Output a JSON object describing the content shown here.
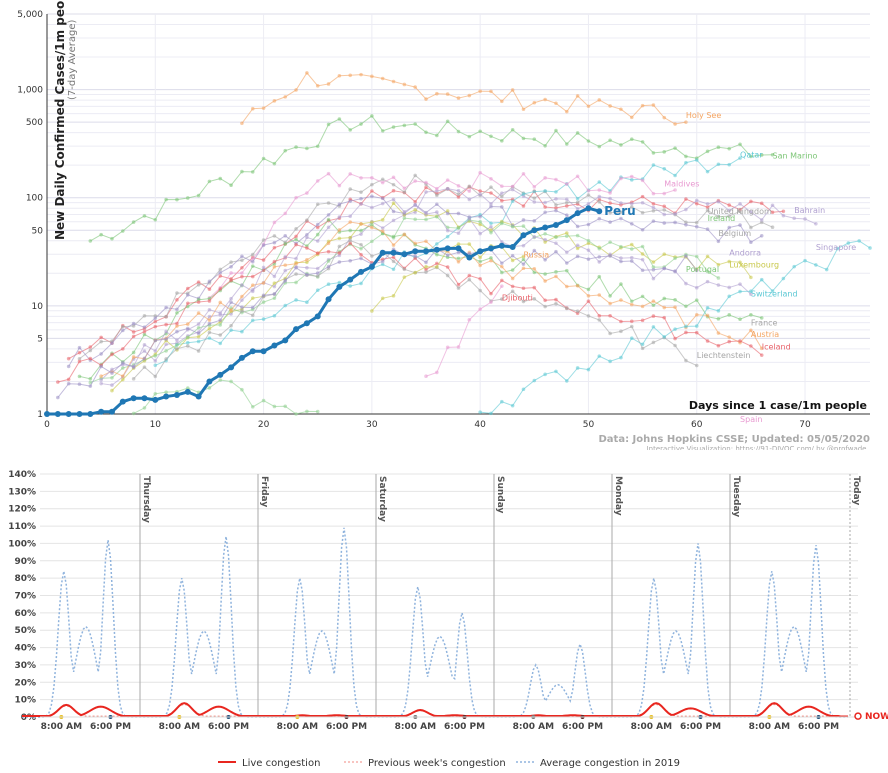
{
  "chart_data": [
    {
      "type": "line",
      "title": "",
      "ylabel": "New Daily Confirmed Cases/1m people",
      "ylabel_sub": "(7-day Average)",
      "xlabel": "Days since 1 case/1m people",
      "yscale": "log",
      "ylim": [
        1,
        5000
      ],
      "xlim": [
        0,
        76
      ],
      "ytick_values": [
        1,
        5,
        10,
        50,
        100,
        500,
        1000,
        5000
      ],
      "ytick_labels": [
        "1",
        "5",
        "10",
        "50",
        "100",
        "500",
        "1,000",
        "5,000"
      ],
      "xticks": [
        0,
        10,
        20,
        30,
        40,
        50,
        60,
        70
      ],
      "source": "Data: Johns Hopkins CSSE; Updated: 05/05/2020",
      "source_sub": "Interactive Visualization: https://91-DIVOC.com/ by @profwade_",
      "highlight": {
        "name": "Peru",
        "color": "#1f77b4",
        "x": [
          0,
          1,
          2,
          3,
          4,
          5,
          6,
          7,
          8,
          9,
          10,
          11,
          12,
          13,
          14,
          15,
          16,
          17,
          18,
          19,
          20,
          21,
          22,
          23,
          24,
          25,
          26,
          27,
          28,
          29,
          30,
          31,
          32,
          33,
          34,
          35,
          36,
          37,
          38,
          39,
          40,
          41,
          42,
          43,
          44,
          45,
          46,
          47,
          48,
          49,
          50,
          51
        ],
        "y": [
          1,
          1,
          1,
          1,
          1,
          1.05,
          1.05,
          1.3,
          1.4,
          1.4,
          1.35,
          1.45,
          1.5,
          1.6,
          1.45,
          2.0,
          2.3,
          2.7,
          3.3,
          3.8,
          3.8,
          4.3,
          4.8,
          6.1,
          6.9,
          8.0,
          11.5,
          15,
          17.5,
          20.6,
          23,
          31,
          31,
          30,
          32,
          32,
          33,
          34,
          34,
          28,
          32,
          34,
          36,
          35,
          45,
          50,
          53,
          56,
          62,
          72,
          80,
          75
        ]
      },
      "country_labels": [
        {
          "name": "Holy See",
          "x": 59,
          "y": 580,
          "color": "#f4a460"
        },
        {
          "name": "Qatar",
          "x": 64,
          "y": 250,
          "color": "#5bc8d4"
        },
        {
          "name": "San Marino",
          "x": 67,
          "y": 245,
          "color": "#7cc576"
        },
        {
          "name": "Maldives",
          "x": 57,
          "y": 135,
          "color": "#e89ad1"
        },
        {
          "name": "United Kingdom",
          "x": 61,
          "y": 75,
          "color": "#a6a6a6"
        },
        {
          "name": "Bahrain",
          "x": 69,
          "y": 77,
          "color": "#b0a0d0"
        },
        {
          "name": "Ireland",
          "x": 61,
          "y": 65,
          "color": "#7cc576"
        },
        {
          "name": "Belgium",
          "x": 62,
          "y": 47,
          "color": "#a6a6a6"
        },
        {
          "name": "Singapore",
          "x": 71,
          "y": 35,
          "color": "#b0a0d0"
        },
        {
          "name": "Andorra",
          "x": 63,
          "y": 31,
          "color": "#b0a0d0"
        },
        {
          "name": "Luxembourg",
          "x": 63,
          "y": 24,
          "color": "#c8c84a"
        },
        {
          "name": "Portugal",
          "x": 59,
          "y": 22,
          "color": "#7cc576"
        },
        {
          "name": "Russia",
          "x": 44,
          "y": 30,
          "color": "#f4a460"
        },
        {
          "name": "Djibouti",
          "x": 42,
          "y": 12,
          "color": "#e8626a"
        },
        {
          "name": "Switzerland",
          "x": 65,
          "y": 13,
          "color": "#5bc8d4"
        },
        {
          "name": "France",
          "x": 65,
          "y": 7,
          "color": "#a6a6a6"
        },
        {
          "name": "Austria",
          "x": 65,
          "y": 5.5,
          "color": "#f4a460"
        },
        {
          "name": "Iceland",
          "x": 66,
          "y": 4.2,
          "color": "#e8626a"
        },
        {
          "name": "Liechtenstein",
          "x": 60,
          "y": 3.5,
          "color": "#a6a6a6"
        },
        {
          "name": "Spain",
          "x": 64,
          "y": 0.9,
          "color": "#e89ad1"
        }
      ]
    },
    {
      "type": "line",
      "title": "",
      "yticks": [
        "140%",
        "130%",
        "120%",
        "110%",
        "100%",
        "90%",
        "80%",
        "70%",
        "60%",
        "50%",
        "40%",
        "30%",
        "20%",
        "10%",
        "0%"
      ],
      "ylim": [
        0,
        140
      ],
      "days": [
        "Thursday",
        "Friday",
        "Saturday",
        "Sunday",
        "Monday",
        "Tuesday",
        "Today"
      ],
      "xtick_labels": [
        "8:00 AM",
        "6:00 PM"
      ],
      "now_label": "NOW",
      "legend": [
        "Live congestion",
        "Previous week's congestion",
        "Average congestion in 2019"
      ],
      "colors": {
        "live": "#e8261f",
        "prev": "#f08a80",
        "avg": "#8fb3dd"
      },
      "average_2019_peaks": [
        {
          "am": 84,
          "pm": 102
        },
        {
          "am": 80,
          "pm": 104
        },
        {
          "am": 80,
          "pm": 109
        },
        {
          "am": 75,
          "pm": 60
        },
        {
          "am": 30,
          "pm": 42
        },
        {
          "am": 80,
          "pm": 100
        },
        {
          "am": 84,
          "pm": 99
        }
      ],
      "live_peaks": [
        {
          "am": 7,
          "pm": 6
        },
        {
          "am": 8,
          "pm": 6
        },
        {
          "am": 1,
          "pm": 1
        },
        {
          "am": 4,
          "pm": 1
        },
        {
          "am": 1,
          "pm": 1
        },
        {
          "am": 8,
          "pm": 5
        },
        {
          "am": 8,
          "pm": 6
        }
      ]
    }
  ]
}
